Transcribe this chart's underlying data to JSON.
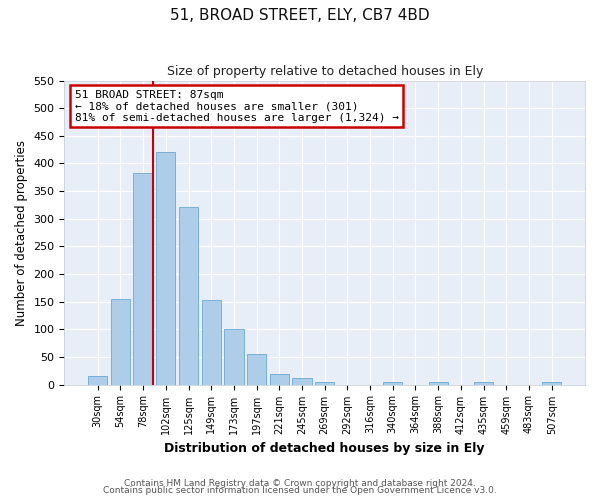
{
  "title": "51, BROAD STREET, ELY, CB7 4BD",
  "subtitle": "Size of property relative to detached houses in Ely",
  "xlabel": "Distribution of detached houses by size in Ely",
  "ylabel": "Number of detached properties",
  "bar_labels": [
    "30sqm",
    "54sqm",
    "78sqm",
    "102sqm",
    "125sqm",
    "149sqm",
    "173sqm",
    "197sqm",
    "221sqm",
    "245sqm",
    "269sqm",
    "292sqm",
    "316sqm",
    "340sqm",
    "364sqm",
    "388sqm",
    "412sqm",
    "435sqm",
    "459sqm",
    "483sqm",
    "507sqm"
  ],
  "bar_values": [
    15,
    155,
    383,
    420,
    322,
    153,
    100,
    55,
    20,
    11,
    4,
    0,
    0,
    5,
    0,
    4,
    0,
    4,
    0,
    0,
    4
  ],
  "bar_color": "#aecde8",
  "bar_edge_color": "#6aaad4",
  "ylim": [
    0,
    550
  ],
  "yticks": [
    0,
    50,
    100,
    150,
    200,
    250,
    300,
    350,
    400,
    450,
    500,
    550
  ],
  "vline_color": "#cc0000",
  "annotation_title": "51 BROAD STREET: 87sqm",
  "annotation_line1": "← 18% of detached houses are smaller (301)",
  "annotation_line2": "81% of semi-detached houses are larger (1,324) →",
  "annotation_box_color": "#cc0000",
  "footer_line1": "Contains HM Land Registry data © Crown copyright and database right 2024.",
  "footer_line2": "Contains public sector information licensed under the Open Government Licence v3.0.",
  "plot_bg_color": "#e8eef8",
  "fig_bg_color": "#ffffff",
  "grid_color": "#ffffff"
}
